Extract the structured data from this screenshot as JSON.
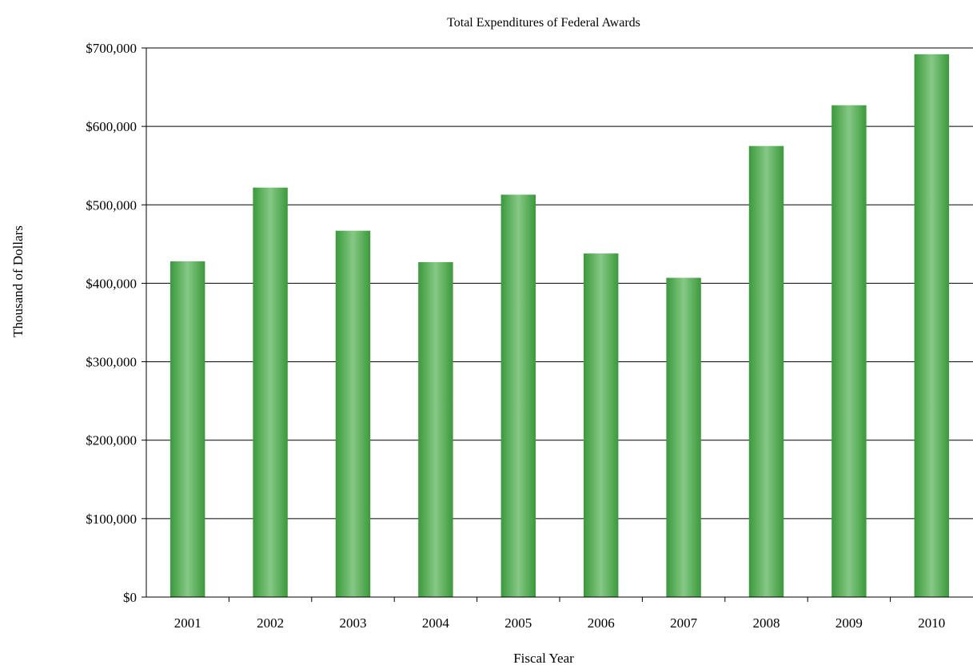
{
  "chart_data": {
    "type": "bar",
    "title": "Total Expenditures of Federal Awards",
    "xlabel": "Fiscal Year",
    "ylabel": "Thousand of Dollars",
    "categories": [
      "2001",
      "2002",
      "2003",
      "2004",
      "2005",
      "2006",
      "2007",
      "2008",
      "2009",
      "2010"
    ],
    "values": [
      428000,
      522000,
      467000,
      427000,
      513000,
      438000,
      407000,
      575000,
      627000,
      692000
    ],
    "ylim": [
      0,
      700000
    ],
    "yticks": [
      0,
      100000,
      200000,
      300000,
      400000,
      500000,
      600000,
      700000
    ],
    "ytick_labels": [
      "$0",
      "$100,000",
      "$200,000",
      "$300,000",
      "$400,000",
      "$500,000",
      "$600,000",
      "$700,000"
    ],
    "grid": "horizontal",
    "legend": "none",
    "colors": {
      "bar_edge": "#3a9a3a",
      "bar_center": "#86c886",
      "grid": "#000000",
      "axis": "#000000"
    }
  }
}
